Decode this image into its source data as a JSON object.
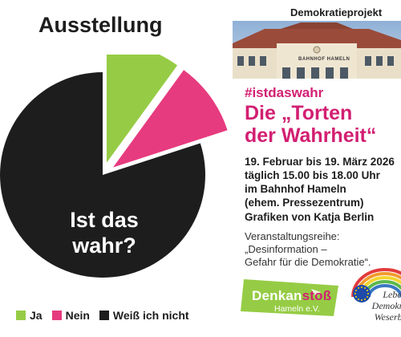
{
  "left": {
    "title": "Ausstellung",
    "pie_text_line1": "Ist das",
    "pie_text_line2": "wahr?"
  },
  "chart_data": {
    "type": "pie",
    "slices": [
      {
        "label": "Ja",
        "value": 10,
        "color": "#96cc45"
      },
      {
        "label": "Nein",
        "value": 10,
        "color": "#e63b7f"
      },
      {
        "label": "Weiß ich nicht",
        "value": 80,
        "color": "#1d1d1d"
      }
    ],
    "legend_placement": "bottom",
    "center_text": "Ist das wahr?"
  },
  "legend": [
    {
      "label": "Ja",
      "color": "#96cc45"
    },
    {
      "label": "Nein",
      "color": "#e63b7f"
    },
    {
      "label": "Weiß ich nicht",
      "color": "#1d1d1d"
    }
  ],
  "right": {
    "project_label": "Demokratieprojekt",
    "photo_sign": "BAHNHOF HAMELN",
    "hashtag": "#istdaswahr",
    "headline_line1": "Die „Torten",
    "headline_line2": "der Wahrheit“",
    "dates": "19. Februar bis 19. März 2026",
    "hours": "täglich 15.00 bis 18.00 Uhr",
    "place": "im Bahnhof Hameln",
    "place_note": "(ehem. Pressezentrum)",
    "credits": "Grafiken von Katja Berlin",
    "series_line1": "Veranstaltungsreihe:",
    "series_line2": "„Desinformation –",
    "series_line3": "Gefahr für die Demokratie“.",
    "logo1_main": "Denkan",
    "logo1_accent": "stoß",
    "logo1_sub": "Hameln e.V.",
    "logo2_line1": "Leben",
    "logo2_line2": "Demokratie",
    "logo2_line3": "Weserberg"
  },
  "colors": {
    "accent": "#d21f72",
    "green": "#96cc45",
    "pink": "#e63b7f",
    "dark": "#1d1d1d"
  }
}
